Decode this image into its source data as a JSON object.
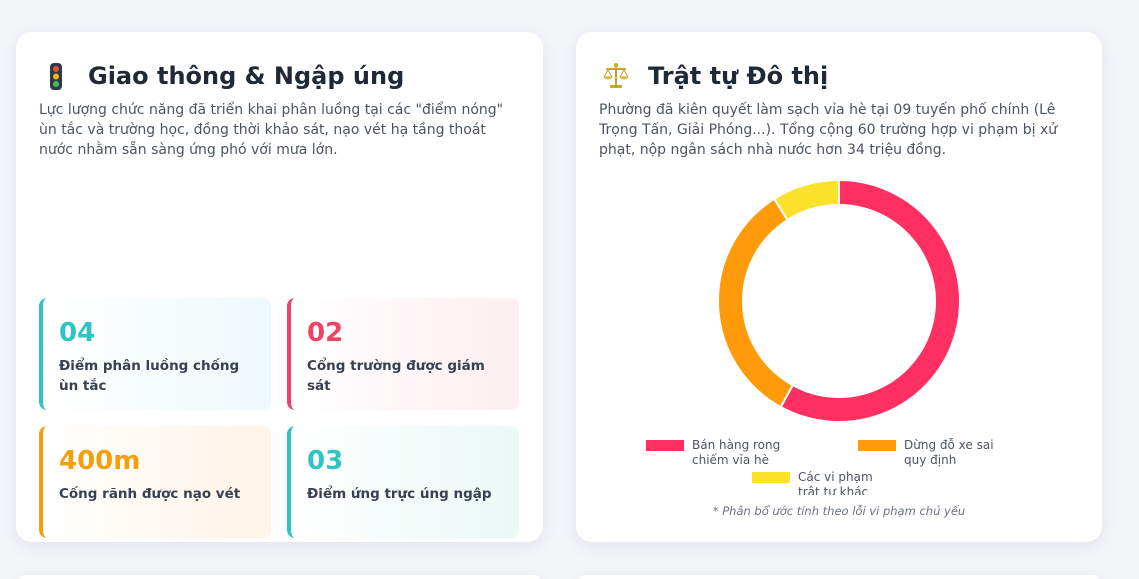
{
  "traffic": {
    "title": "Giao thông & Ngập úng",
    "icon": "traffic-light-icon",
    "description": "Lực lượng chức năng đã triển khai phân luồng tại các \"điểm nóng\" ùn tắc và trường học, đồng thời khảo sát, nạo vét hạ tầng thoát nước nhằm sẵn sàng ứng phó với mưa lớn.",
    "stats": [
      {
        "value": "04",
        "label": "Điểm phân luồng chống ùn tắc",
        "color": "#2ec4c4"
      },
      {
        "value": "02",
        "label": "Cổng trường được giám sát",
        "color": "#f0436a"
      },
      {
        "value": "400m",
        "label": "Cống rãnh được nạo vét",
        "color": "#f59e0b"
      },
      {
        "value": "03",
        "label": "Điểm ứng trực úng ngập",
        "color": "#2ec4c4"
      }
    ]
  },
  "order": {
    "title": "Trật tự Đô thị",
    "icon": "balance-scale-icon",
    "description": "Phường đã kiên quyết làm sạch vỉa hè tại 09 tuyến phố chính (Lê Trọng Tấn, Giải Phóng...). Tổng cộng 60 trường hợp vi phạm bị xử phạt, nộp ngân sách nhà nước hơn 34 triệu đồng.",
    "note": "* Phân bổ ước tính theo lỗi vi phạm chủ yếu"
  },
  "chart_data": {
    "type": "pie",
    "style": "donut",
    "categories": [
      "Bán hàng rong chiếm vỉa hè",
      "Dừng đỗ xe sai quy định",
      "Các vi phạm trật tự khác"
    ],
    "values": [
      58,
      33,
      9
    ],
    "colors": [
      "#ff2f62",
      "#ff9a0a",
      "#fbe12a"
    ],
    "legend": "bottom"
  }
}
